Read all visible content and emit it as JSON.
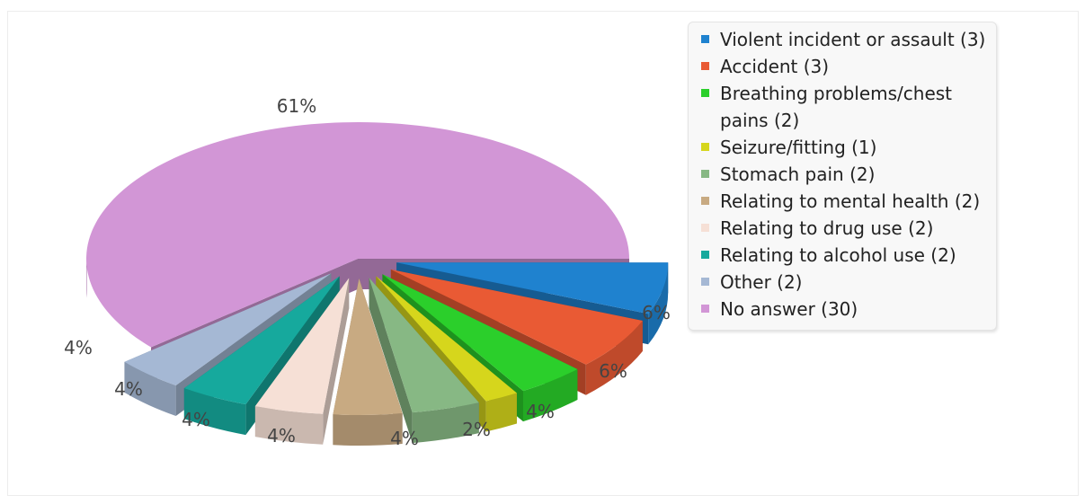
{
  "chart_data": {
    "type": "pie",
    "style": "3d-exploded",
    "title": "",
    "slices": [
      {
        "label": "Violent incident or assault (3)",
        "value": 3,
        "percent_label": "6%",
        "color": "#1f82cf"
      },
      {
        "label": "Accident (3)",
        "value": 3,
        "percent_label": "6%",
        "color": "#e95a34"
      },
      {
        "label": "Breathing problems/chest pains (2)",
        "value": 2,
        "percent_label": "4%",
        "color": "#2bcf2b"
      },
      {
        "label": "Seizure/fitting (1)",
        "value": 1,
        "percent_label": "2%",
        "color": "#d6d61c"
      },
      {
        "label": "Stomach pain (2)",
        "value": 2,
        "percent_label": "4%",
        "color": "#87b884"
      },
      {
        "label": "Relating to mental health (2)",
        "value": 2,
        "percent_label": "4%",
        "color": "#c8aa82"
      },
      {
        "label": "Relating to drug use (2)",
        "value": 2,
        "percent_label": "4%",
        "color": "#f6e0d6"
      },
      {
        "label": "Relating to alcohol use (2)",
        "value": 2,
        "percent_label": "4%",
        "color": "#16a99d"
      },
      {
        "label": "Other (2)",
        "value": 2,
        "percent_label": "4%",
        "color": "#a5b8d4"
      },
      {
        "label": "No answer (30)",
        "value": 30,
        "percent_label": "61%",
        "color": "#d296d6"
      }
    ],
    "legend": {
      "position": "right"
    }
  }
}
